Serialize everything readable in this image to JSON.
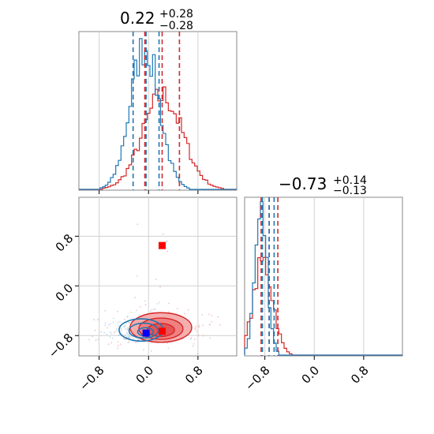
{
  "chart_data": {
    "type": "corner-plot",
    "colors": {
      "series_a": "#d62728",
      "series_b": "#1f77b4",
      "marker_red": "#ff0000",
      "marker_blue": "#0000ff"
    },
    "grid": true,
    "axis_range": [
      -1.0,
      1.3
    ],
    "ticks": [
      "-0.8",
      "0.0",
      "0.8"
    ],
    "tick_values": [
      -0.8,
      0.0,
      0.8
    ],
    "panels": [
      {
        "id": "hist-param-1",
        "title_value": "0.22",
        "title_plus": "+0.28",
        "title_minus": "−0.28",
        "red_quantiles": [
          -0.06,
          0.22,
          0.5
        ],
        "blue_quantiles": [
          -0.25,
          -0.04,
          0.17
        ],
        "red_hist": {
          "mean": 0.22,
          "sd": 0.29,
          "peak": 0.62
        },
        "blue_hist": {
          "mean": -0.04,
          "sd": 0.21,
          "peak": 0.95
        }
      },
      {
        "id": "hist-param-2",
        "title_value": "−0.73",
        "title_plus": "+0.14",
        "title_minus": "−0.13",
        "red_quantiles": [
          -0.86,
          -0.73,
          -0.59
        ],
        "blue_quantiles": [
          -0.84,
          -0.73,
          -0.65
        ],
        "red_hist": {
          "mean": -0.73,
          "sd": 0.14,
          "peak": 0.62
        },
        "blue_hist": {
          "mean": -0.76,
          "sd": 0.09,
          "peak": 0.95
        }
      }
    ],
    "scatter_2d": {
      "red_points": [
        {
          "x": 0.22,
          "y": 0.65
        },
        {
          "x": 0.22,
          "y": -0.73
        }
      ],
      "blue_points": [
        {
          "x": -0.04,
          "y": -0.76
        }
      ],
      "red_contours": [
        {
          "cx": 0.2,
          "cy": -0.67,
          "rx": 0.95,
          "ry": 0.32,
          "level": 1
        },
        {
          "cx": 0.2,
          "cy": -0.69,
          "rx": 0.68,
          "ry": 0.23,
          "level": 2
        },
        {
          "cx": 0.2,
          "cy": -0.71,
          "rx": 0.42,
          "ry": 0.14,
          "level": 3
        }
      ],
      "blue_contours": [
        {
          "cx": -0.12,
          "cy": -0.71,
          "rx": 0.68,
          "ry": 0.24
        },
        {
          "cx": -0.08,
          "cy": -0.72,
          "rx": 0.45,
          "ry": 0.16
        },
        {
          "cx": -0.05,
          "cy": -0.74,
          "rx": 0.24,
          "ry": 0.09
        }
      ]
    }
  }
}
